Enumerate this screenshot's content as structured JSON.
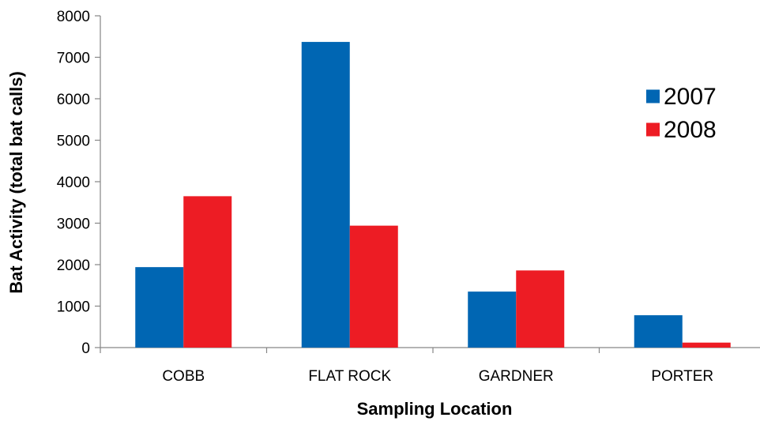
{
  "chart_data": {
    "type": "bar",
    "title": "",
    "xlabel": "Sampling Location",
    "ylabel": "Bat Activity (total bat calls)",
    "categories": [
      "COBB",
      "FLAT ROCK",
      "GARDNER",
      "PORTER"
    ],
    "series": [
      {
        "name": "2007",
        "color": "#0066B3",
        "values": [
          1940,
          7370,
          1350,
          780
        ]
      },
      {
        "name": "2008",
        "color": "#ED1C24",
        "values": [
          3650,
          2940,
          1860,
          120
        ]
      }
    ],
    "ylim": [
      0,
      8000
    ],
    "yticks": [
      0,
      1000,
      2000,
      3000,
      4000,
      5000,
      6000,
      7000,
      8000
    ],
    "grid": false,
    "legend_position": "right"
  }
}
